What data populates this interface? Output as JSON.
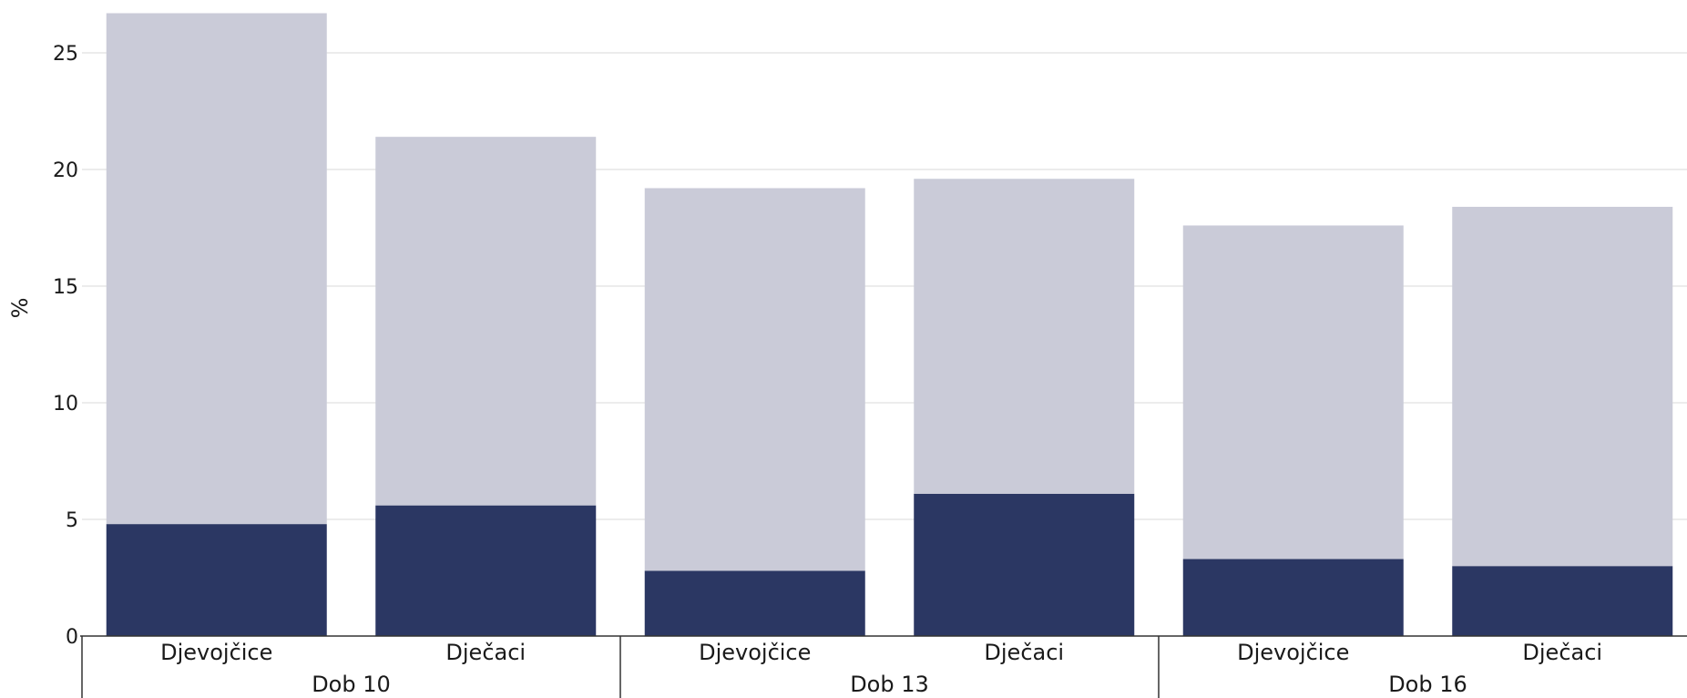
{
  "chart_data": {
    "type": "bar",
    "stacked": true,
    "title": "",
    "xlabel": "",
    "ylabel": "%",
    "ylim": [
      0,
      26.8
    ],
    "yticks": [
      0,
      5,
      10,
      15,
      20,
      25
    ],
    "grid": true,
    "legend": "none",
    "groups": [
      "Dob 10",
      "Dob 13",
      "Dob 16"
    ],
    "categories": [
      "Djevojčice",
      "Dječaci",
      "Djevojčice",
      "Dječaci",
      "Djevojčice",
      "Dječaci"
    ],
    "category_group": [
      0,
      0,
      1,
      1,
      2,
      2
    ],
    "series": [
      {
        "color": "#2b3763",
        "values": [
          4.8,
          5.6,
          2.8,
          6.1,
          3.3,
          3.0
        ]
      },
      {
        "color": "#cacbd8",
        "values": [
          21.9,
          15.8,
          16.4,
          13.5,
          14.3,
          15.4
        ]
      }
    ]
  }
}
